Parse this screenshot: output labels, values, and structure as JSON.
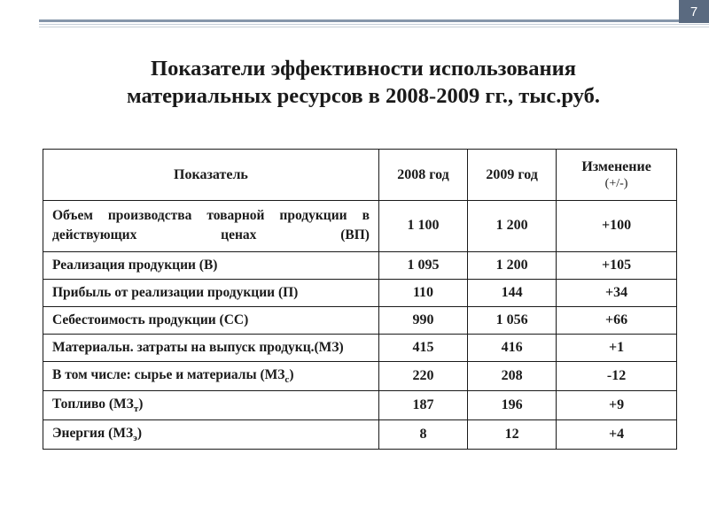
{
  "page_number": "7",
  "title_line1": "Показатели эффективности использования",
  "title_line2": "материальных ресурсов в 2008-2009 гг., тыс.руб.",
  "colors": {
    "accent_bar": "#8696aa",
    "page_box": "#5a6a80",
    "text": "#1a1a1a",
    "border": "#1a1a1a",
    "background": "#ffffff"
  },
  "table": {
    "type": "table",
    "col_widths_pct": [
      53,
      14,
      14,
      19
    ],
    "headers": {
      "c0": "Показатель",
      "c1": "2008 год",
      "c2": "2009 год",
      "c3_main": "Изменение",
      "c3_sub": "(+/-)"
    },
    "rows": [
      {
        "label": "Объем производства товарной продукции в действующих ценах (ВП)",
        "y2008": "1 100",
        "y2009": "1 200",
        "delta": "+100",
        "tall": true
      },
      {
        "label": "Реализация продукции (В)",
        "y2008": "1 095",
        "y2009": "1 200",
        "delta": "+105"
      },
      {
        "label": "Прибыль от реализации продукции (П)",
        "y2008": "110",
        "y2009": "144",
        "delta": "+34"
      },
      {
        "label": "Себестоимость продукции (СС)",
        "y2008": "990",
        "y2009": "1 056",
        "delta": "+66"
      },
      {
        "label": "Материальн. затраты на выпуск продукц.(МЗ)",
        "y2008": "415",
        "y2009": "416",
        "delta": "+1"
      },
      {
        "label_html": "В том числе: сырье и материалы (МЗ<span class='subscr'>с</span>)",
        "y2008": "220",
        "y2009": "208",
        "delta": "-12"
      },
      {
        "label_html": "Топливо (МЗ<span class='subscr'>т</span>)",
        "y2008": "187",
        "y2009": "196",
        "delta": "+9"
      },
      {
        "label_html": "Энергия (МЗ<span class='subscr'>э</span>)",
        "y2008": "8",
        "y2009": "12",
        "delta": "+4"
      }
    ]
  }
}
